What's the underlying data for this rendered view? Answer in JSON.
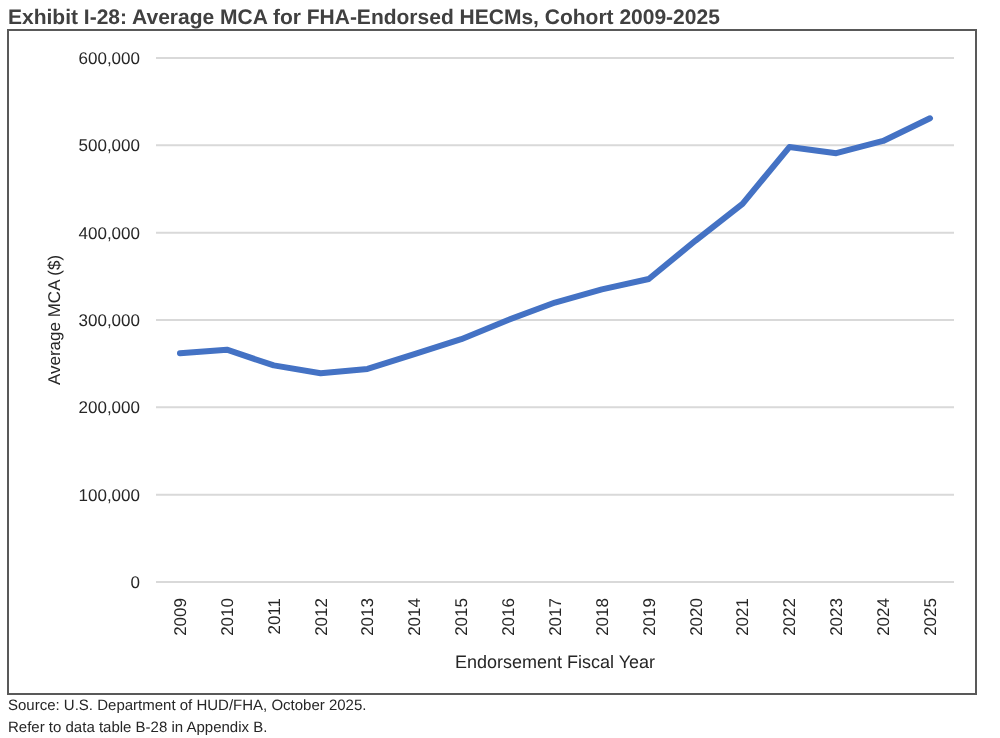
{
  "chart_data": {
    "type": "line",
    "title": "Exhibit I-28: Average MCA for FHA-Endorsed HECMs, Cohort 2009-2025",
    "xlabel": "Endorsement Fiscal Year",
    "ylabel": "Average MCA ($)",
    "categories": [
      "2009",
      "2010",
      "2011",
      "2012",
      "2013",
      "2014",
      "2015",
      "2016",
      "2017",
      "2018",
      "2019",
      "2020",
      "2021",
      "2022",
      "2023",
      "2024",
      "2025"
    ],
    "series": [
      {
        "color": "#4472c4",
        "values": [
          262000,
          266000,
          248000,
          239000,
          244000,
          261000,
          278000,
          300000,
          320000,
          335000,
          347000,
          391000,
          433000,
          498000,
          491000,
          505000,
          531000
        ]
      }
    ],
    "ylim": [
      0,
      600000
    ],
    "yticks": [
      {
        "value": 0,
        "label": "0"
      },
      {
        "value": 100000,
        "label": "100,000"
      },
      {
        "value": 200000,
        "label": "200,000"
      },
      {
        "value": 300000,
        "label": "300,000"
      },
      {
        "value": 400000,
        "label": "400,000"
      },
      {
        "value": 500000,
        "label": "500,000"
      },
      {
        "value": 600000,
        "label": "600,000"
      }
    ],
    "grid": "y",
    "marker": "none",
    "line_style": "solid",
    "annotations": [
      "Source: U.S. Department of HUD/FHA, October 2025.",
      "Refer to data table B-28 in Appendix B."
    ]
  }
}
